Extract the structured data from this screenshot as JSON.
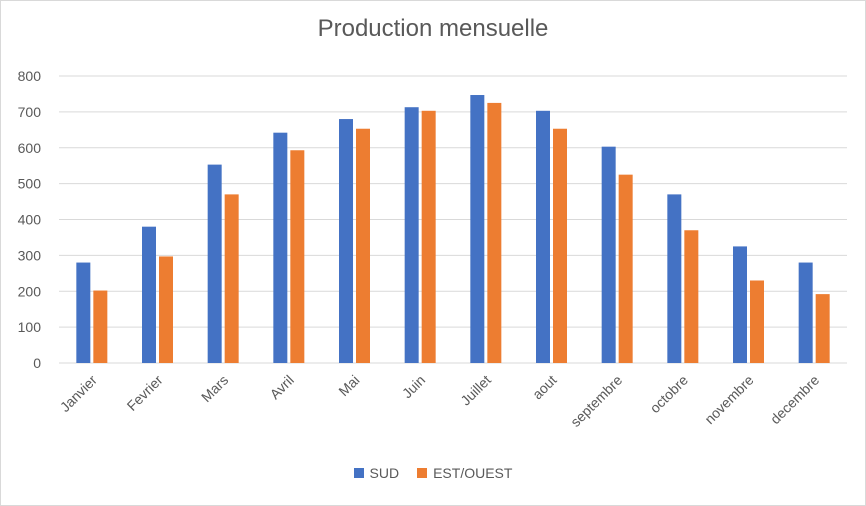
{
  "chart_data": {
    "type": "bar",
    "title": "Production mensuelle",
    "categories": [
      "Janvier",
      "Fevrier",
      "Mars",
      "Avril",
      "Mai",
      "Juin",
      "Juillet",
      "aout",
      "septembre",
      "octobre",
      "novembre",
      "decembre"
    ],
    "series": [
      {
        "name": "SUD",
        "color": "#4472c4",
        "values": [
          280,
          380,
          553,
          642,
          680,
          713,
          747,
          703,
          603,
          470,
          325,
          280
        ]
      },
      {
        "name": "EST/OUEST",
        "color": "#ed7d31",
        "values": [
          202,
          297,
          470,
          593,
          653,
          703,
          725,
          653,
          525,
          370,
          230,
          192
        ]
      }
    ],
    "ylim": [
      0,
      800
    ],
    "yticks": [
      0,
      100,
      200,
      300,
      400,
      500,
      600,
      700,
      800
    ],
    "grid": true,
    "legend_position": "bottom",
    "gridline_color": "#d9d9d9"
  }
}
